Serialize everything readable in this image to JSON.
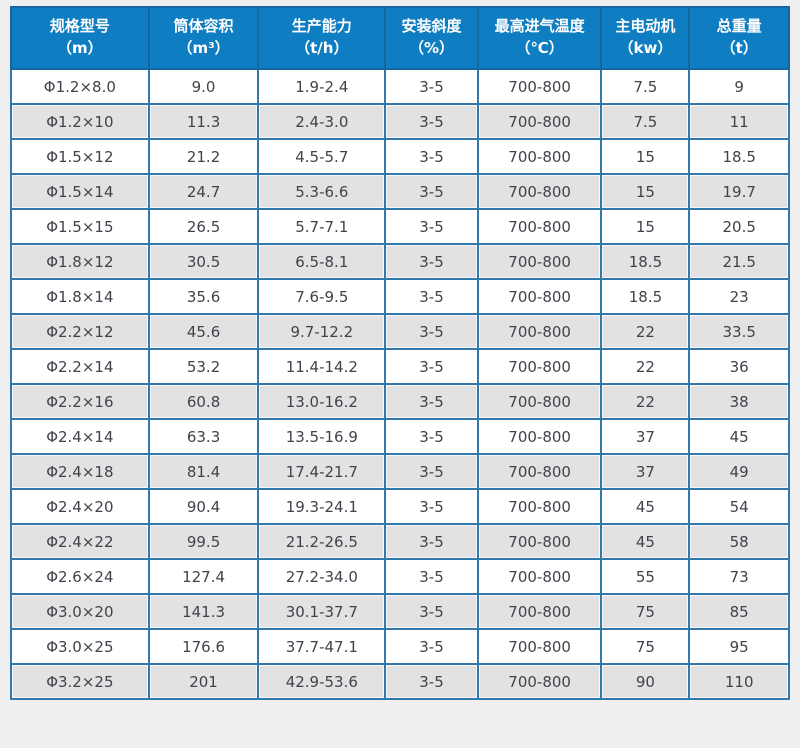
{
  "colors": {
    "header_bg": "#0e7dc1",
    "header_text": "#ffffff",
    "grid_border": "#3378aa",
    "row_bg": "#ffffff",
    "row_alt_bg": "#e2e2e2",
    "cell_text": "#42424c",
    "page_bg": "#f0eff0"
  },
  "chart_data": {
    "type": "table",
    "columns": [
      {
        "key": "model",
        "label": "规格型号",
        "unit": "（m）"
      },
      {
        "key": "volume",
        "label": "筒体容积",
        "unit": "（m³）"
      },
      {
        "key": "capacity",
        "label": "生产能力",
        "unit": "（t/h）"
      },
      {
        "key": "slope",
        "label": "安装斜度",
        "unit": "（%）"
      },
      {
        "key": "inlet_temp",
        "label": "最高进气温度",
        "unit": "（℃）"
      },
      {
        "key": "motor",
        "label": "主电动机",
        "unit": "（kw）"
      },
      {
        "key": "weight",
        "label": "总重量",
        "unit": "（t）"
      }
    ],
    "rows": [
      [
        "Φ1.2×8.0",
        "9.0",
        "1.9-2.4",
        "3-5",
        "700-800",
        "7.5",
        "9"
      ],
      [
        "Φ1.2×10",
        "11.3",
        "2.4-3.0",
        "3-5",
        "700-800",
        "7.5",
        "11"
      ],
      [
        "Φ1.5×12",
        "21.2",
        "4.5-5.7",
        "3-5",
        "700-800",
        "15",
        "18.5"
      ],
      [
        "Φ1.5×14",
        "24.7",
        "5.3-6.6",
        "3-5",
        "700-800",
        "15",
        "19.7"
      ],
      [
        "Φ1.5×15",
        "26.5",
        "5.7-7.1",
        "3-5",
        "700-800",
        "15",
        "20.5"
      ],
      [
        "Φ1.8×12",
        "30.5",
        "6.5-8.1",
        "3-5",
        "700-800",
        "18.5",
        "21.5"
      ],
      [
        "Φ1.8×14",
        "35.6",
        "7.6-9.5",
        "3-5",
        "700-800",
        "18.5",
        "23"
      ],
      [
        "Φ2.2×12",
        "45.6",
        "9.7-12.2",
        "3-5",
        "700-800",
        "22",
        "33.5"
      ],
      [
        "Φ2.2×14",
        "53.2",
        "11.4-14.2",
        "3-5",
        "700-800",
        "22",
        "36"
      ],
      [
        "Φ2.2×16",
        "60.8",
        "13.0-16.2",
        "3-5",
        "700-800",
        "22",
        "38"
      ],
      [
        "Φ2.4×14",
        "63.3",
        "13.5-16.9",
        "3-5",
        "700-800",
        "37",
        "45"
      ],
      [
        "Φ2.4×18",
        "81.4",
        "17.4-21.7",
        "3-5",
        "700-800",
        "37",
        "49"
      ],
      [
        "Φ2.4×20",
        "90.4",
        "19.3-24.1",
        "3-5",
        "700-800",
        "45",
        "54"
      ],
      [
        "Φ2.4×22",
        "99.5",
        "21.2-26.5",
        "3-5",
        "700-800",
        "45",
        "58"
      ],
      [
        "Φ2.6×24",
        "127.4",
        "27.2-34.0",
        "3-5",
        "700-800",
        "55",
        "73"
      ],
      [
        "Φ3.0×20",
        "141.3",
        "30.1-37.7",
        "3-5",
        "700-800",
        "75",
        "85"
      ],
      [
        "Φ3.0×25",
        "176.6",
        "37.7-47.1",
        "3-5",
        "700-800",
        "75",
        "95"
      ],
      [
        "Φ3.2×25",
        "201",
        "42.9-53.6",
        "3-5",
        "700-800",
        "90",
        "110"
      ]
    ]
  }
}
